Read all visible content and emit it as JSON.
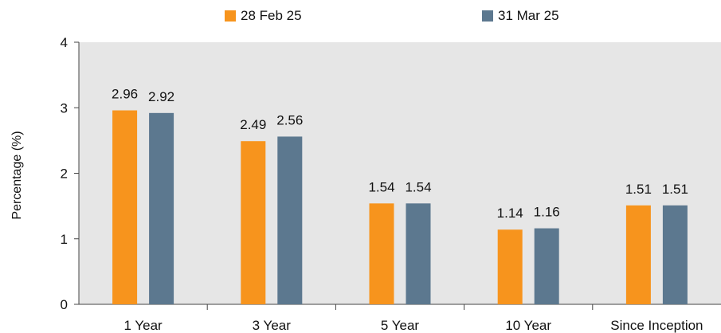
{
  "chart_data": {
    "type": "bar",
    "categories": [
      "1 Year",
      "3 Year",
      "5 Year",
      "10  Year",
      "Since Inception"
    ],
    "series": [
      {
        "name": "28 Feb 25",
        "color": "#F7941D",
        "values": [
          2.96,
          2.49,
          1.54,
          1.14,
          1.51
        ]
      },
      {
        "name": "31 Mar 25",
        "color": "#5C788F",
        "values": [
          2.92,
          2.56,
          1.54,
          1.16,
          1.51
        ]
      }
    ],
    "ylabel": "Percentage (%)",
    "xlabel": "",
    "ylim": [
      0,
      4
    ],
    "yticks": [
      0,
      1,
      2,
      3,
      4
    ],
    "plot_background": "#E6E6E6",
    "legend_position": "top",
    "grid": false
  }
}
